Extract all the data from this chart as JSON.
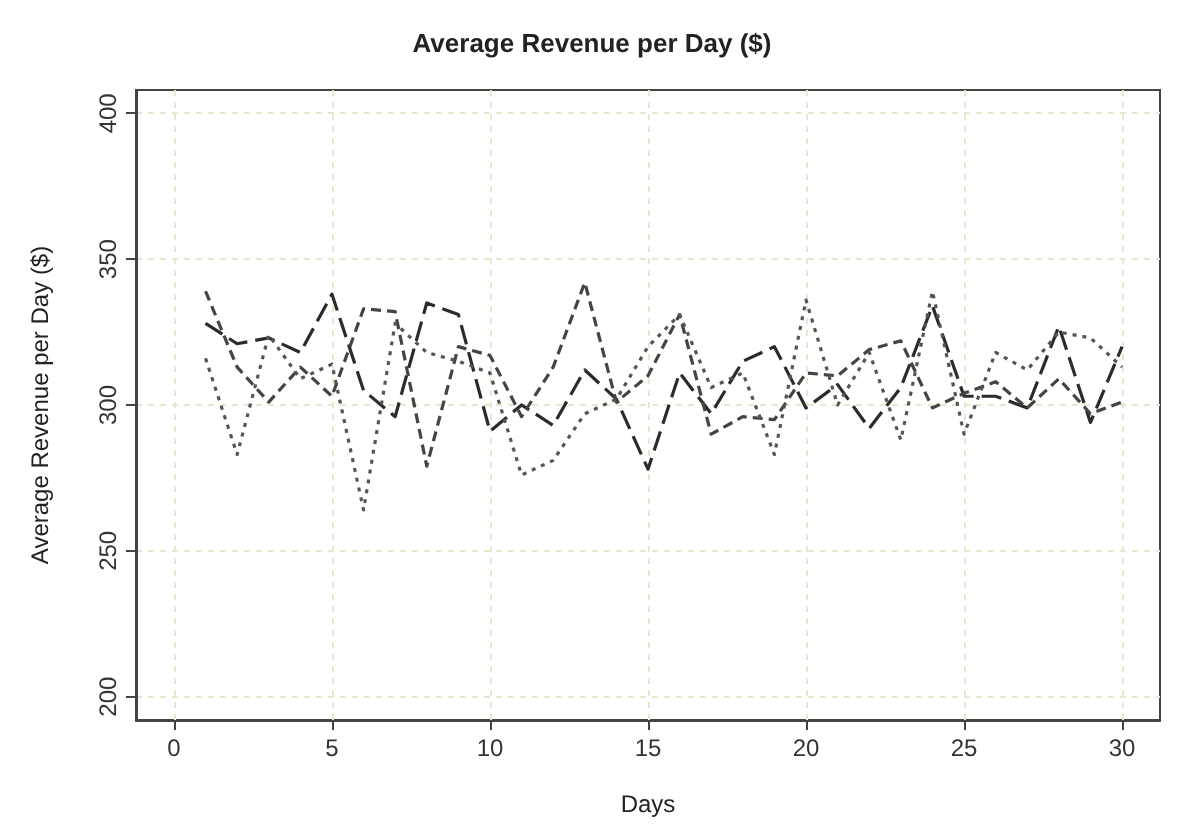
{
  "chart_data": {
    "type": "line",
    "title": "Average Revenue per Day ($)",
    "xlabel": "Days",
    "ylabel": "Average Revenue per Day ($)",
    "x": [
      1,
      2,
      3,
      4,
      5,
      6,
      7,
      8,
      9,
      10,
      11,
      12,
      13,
      14,
      15,
      16,
      17,
      18,
      19,
      20,
      21,
      22,
      23,
      24,
      25,
      26,
      27,
      28,
      29,
      30
    ],
    "series": [
      {
        "color": "#2b2b2b",
        "line_style": "long-dashed",
        "values": [
          328,
          321,
          323,
          318,
          338,
          305,
          296,
          335,
          331,
          291,
          300,
          293,
          312,
          302,
          278,
          311,
          297,
          315,
          320,
          299,
          307,
          292,
          306,
          334,
          303,
          303,
          299,
          327,
          294,
          320
        ]
      },
      {
        "color": "#444444",
        "line_style": "dashed",
        "values": [
          339,
          313,
          301,
          313,
          303,
          333,
          332,
          279,
          320,
          317,
          296,
          313,
          342,
          301,
          310,
          331,
          290,
          296,
          295,
          311,
          310,
          319,
          322,
          299,
          304,
          308,
          299,
          309,
          297,
          301
        ]
      },
      {
        "color": "#555555",
        "line_style": "dotted",
        "values": [
          316,
          283,
          324,
          309,
          314,
          264,
          328,
          318,
          315,
          311,
          276,
          281,
          297,
          302,
          320,
          331,
          306,
          311,
          283,
          336,
          300,
          318,
          288,
          339,
          290,
          318,
          312,
          325,
          323,
          313
        ]
      }
    ],
    "xlim": [
      -1.2,
      31.2
    ],
    "xticks": [
      0,
      5,
      10,
      15,
      20,
      25,
      30
    ],
    "ylim": [
      192,
      408
    ],
    "yticks": [
      200,
      250,
      300,
      350,
      400
    ],
    "grid": true,
    "marker": "none"
  }
}
